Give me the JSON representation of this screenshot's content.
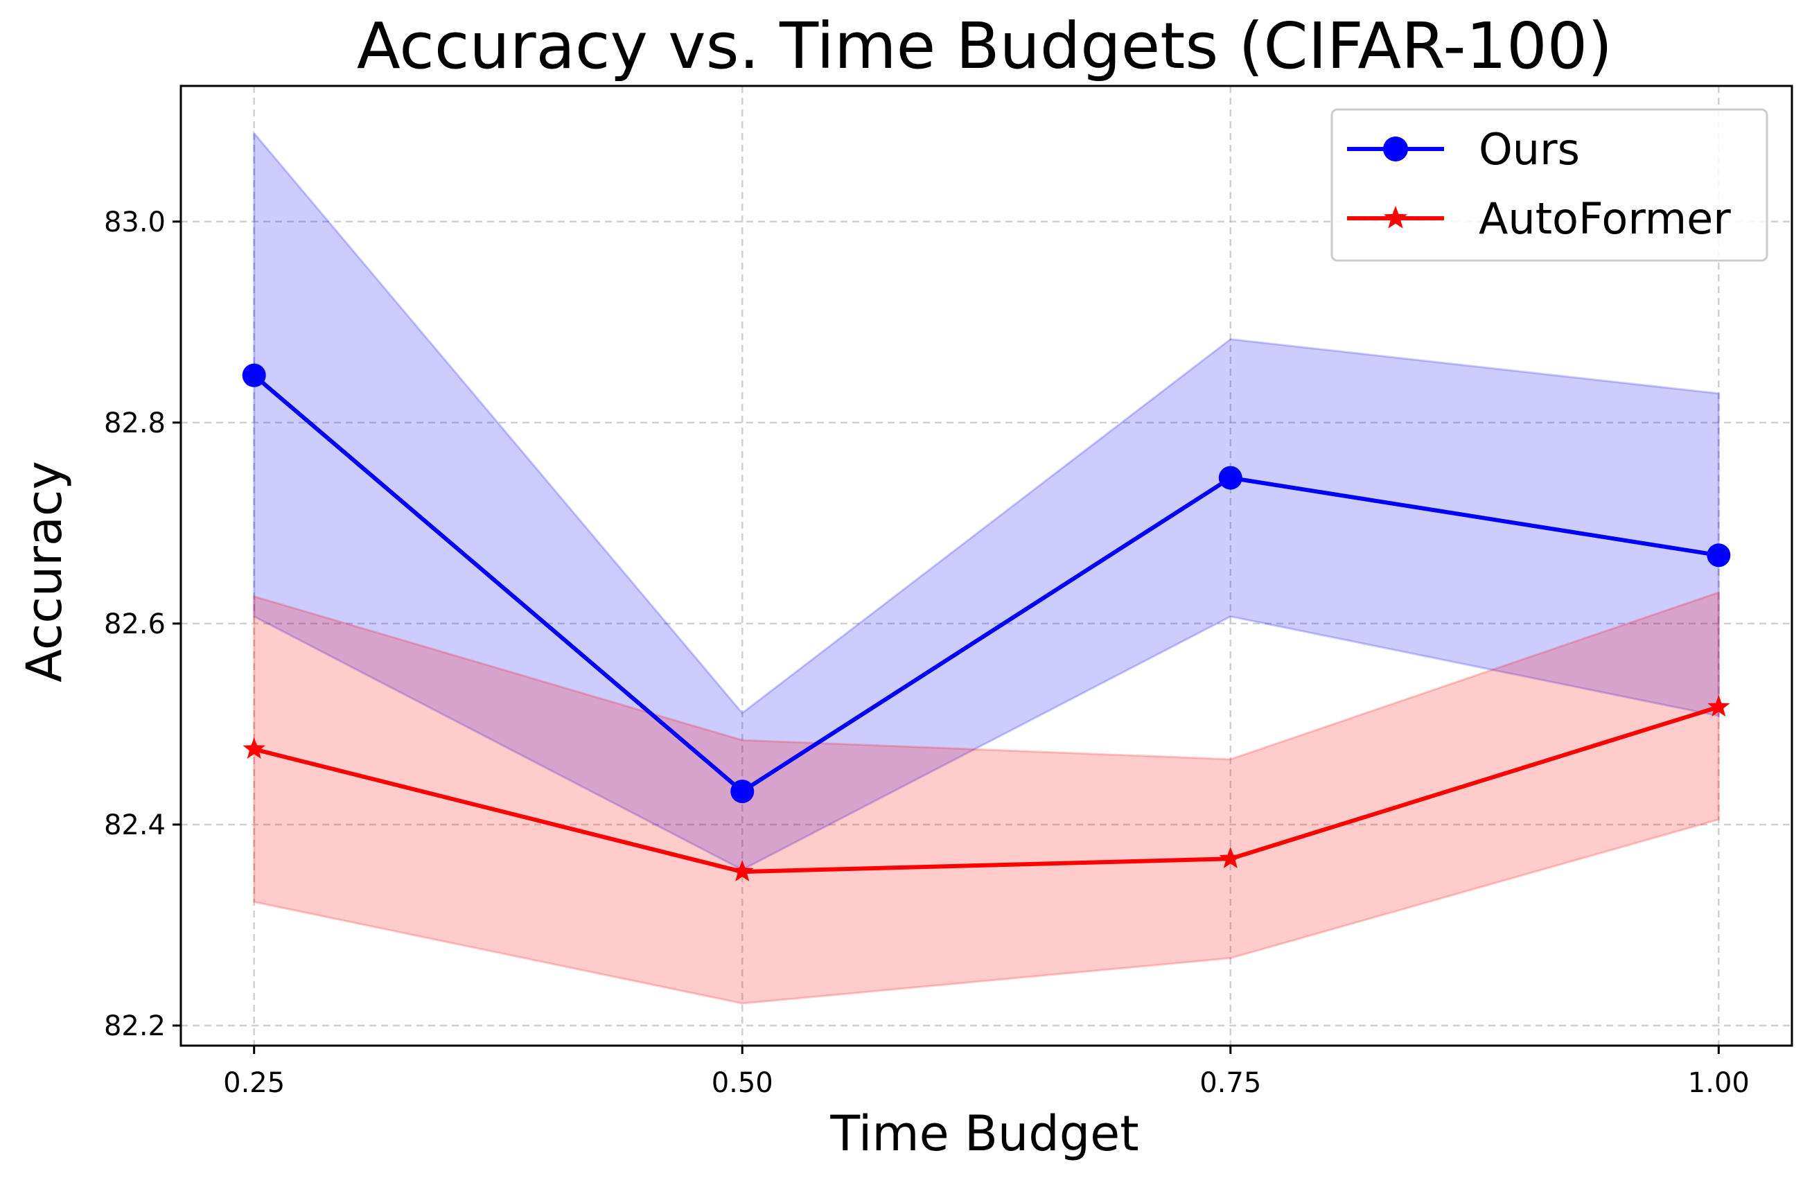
{
  "chart_data": {
    "type": "line",
    "title": "Accuracy vs. Time Budgets (CIFAR-100)",
    "xlabel": "Time Budget",
    "ylabel": "Accuracy",
    "x": [
      0.25,
      0.5,
      0.75,
      1.0
    ],
    "x_tick_labels": [
      "0.25",
      "0.50",
      "0.75",
      "1.00"
    ],
    "y_ticks": [
      82.2,
      82.4,
      82.6,
      82.8,
      83.0
    ],
    "y_tick_labels": [
      "82.2",
      "82.4",
      "82.6",
      "82.8",
      "83.0"
    ],
    "xlim": [
      0.2125,
      1.0375
    ],
    "ylim": [
      82.18,
      83.135
    ],
    "grid": true,
    "legend_position": "top-right",
    "series": [
      {
        "name": "Ours",
        "color": "#0000ff",
        "marker": "circle",
        "values": [
          82.847,
          82.433,
          82.745,
          82.668
        ],
        "band_lower": [
          82.607,
          82.355,
          82.607,
          82.508
        ],
        "band_upper": [
          83.088,
          82.511,
          82.883,
          82.829
        ]
      },
      {
        "name": "AutoFormer",
        "color": "#ff0000",
        "marker": "star",
        "values": [
          82.475,
          82.353,
          82.366,
          82.517
        ],
        "band_lower": [
          82.323,
          82.222,
          82.267,
          82.405
        ],
        "band_upper": [
          82.627,
          82.484,
          82.465,
          82.631
        ]
      }
    ]
  }
}
